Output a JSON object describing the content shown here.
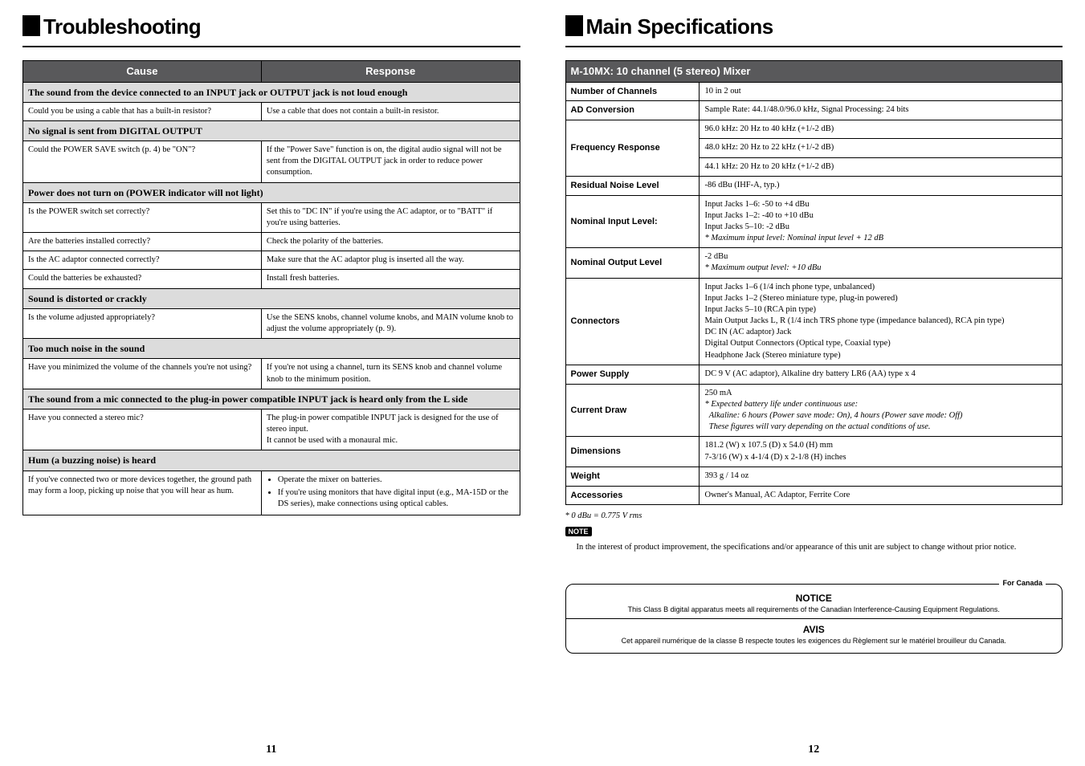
{
  "left": {
    "title": "Troubleshooting",
    "headers": {
      "cause": "Cause",
      "response": "Response"
    },
    "sections": [
      {
        "header": "The sound from the device connected to an INPUT jack or OUTPUT jack is not loud enough",
        "rows": [
          {
            "c": "Could you be using a cable that has a built-in resistor?",
            "r": "Use a cable that does not contain a built-in resistor."
          }
        ]
      },
      {
        "header": "No signal is sent from DIGITAL OUTPUT",
        "rows": [
          {
            "c": "Could the POWER SAVE switch (p. 4) be \"ON\"?",
            "r": "If the \"Power Save\" function is on, the digital audio signal will not be sent from the DIGITAL OUTPUT jack in order to reduce power consumption."
          }
        ]
      },
      {
        "header": "Power does not turn on (POWER indicator will not light)",
        "rows": [
          {
            "c": "Is the POWER switch set correctly?",
            "r": "Set this to \"DC IN\" if you're using the AC adaptor, or to \"BATT\" if you're using batteries."
          },
          {
            "c": "Are the batteries installed correctly?",
            "r": "Check the polarity of the batteries."
          },
          {
            "c": "Is the AC adaptor connected correctly?",
            "r": "Make sure that the AC adaptor plug is inserted all the way."
          },
          {
            "c": "Could the batteries be exhausted?",
            "r": "Install fresh batteries."
          }
        ]
      },
      {
        "header": "Sound is distorted or crackly",
        "rows": [
          {
            "c": "Is the volume adjusted appropriately?",
            "r": "Use the SENS knobs, channel volume knobs, and MAIN volume knob to adjust the volume appropriately (p. 9)."
          }
        ]
      },
      {
        "header": "Too much noise in the sound",
        "rows": [
          {
            "c": "Have you minimized the volume of the channels you're not using?",
            "r": "If you're not using a channel, turn its SENS knob and channel volume knob to the minimum position."
          }
        ]
      },
      {
        "header": "The sound from a mic connected to the plug-in power compatible INPUT jack is heard only from the L side",
        "rows": [
          {
            "c": "Have you connected a stereo mic?",
            "r": "The plug-in power compatible INPUT jack is designed for the use of stereo input.\nIt cannot be used with a monaural mic."
          }
        ]
      },
      {
        "header": "Hum (a buzzing noise) is heard",
        "rows": [
          {
            "c": "If you've connected two or more devices together, the ground path may form a loop, picking up noise that you will hear as hum.",
            "r_bullets": [
              "Operate the mixer on batteries.",
              "If you're using monitors that have digital input (e.g., MA-15D or the DS series), make connections using optical cables."
            ]
          }
        ]
      }
    ],
    "page_num": "11"
  },
  "right": {
    "title": "Main Specifications",
    "top_header": "M-10MX: 10 channel (5 stereo) Mixer",
    "rows": [
      {
        "label": "Number of Channels",
        "cells": [
          "10 in 2 out"
        ]
      },
      {
        "label": "AD Conversion",
        "cells": [
          "Sample Rate: 44.1/48.0/96.0 kHz, Signal Processing: 24 bits"
        ]
      },
      {
        "label": "Frequency Response",
        "cells": [
          "96.0 kHz: 20 Hz to 40 kHz (+1/-2 dB)",
          "48.0 kHz: 20 Hz to 22 kHz (+1/-2 dB)",
          "44.1 kHz: 20 Hz to 20 kHz (+1/-2 dB)"
        ]
      },
      {
        "label": "Residual Noise Level",
        "cells": [
          "-86 dBu (IHF-A, typ.)"
        ]
      },
      {
        "label": "Nominal Input Level:",
        "cells_html": "Input Jacks 1–6: -50 to +4 dBu<br>Input Jacks 1–2: -40 to +10 dBu<br>Input Jacks 5–10: -2 dBu<br><span class=\"italic\">* Maximum input level: Nominal input level + 12 dB</span>"
      },
      {
        "label": "Nominal Output Level",
        "cells_html": "-2 dBu<br><span class=\"italic\">* Maximum output level: +10 dBu</span>"
      },
      {
        "label": "Connectors",
        "cells_html": "Input Jacks 1–6 (1/4 inch phone type, unbalanced)<br>Input Jacks 1–2 (Stereo miniature type, plug-in powered)<br>Input Jacks 5–10 (RCA pin type)<br>Main Output Jacks L, R (1/4 inch TRS phone type (impedance balanced), RCA pin type)<br>DC IN (AC adaptor) Jack<br>Digital Output Connectors (Optical type, Coaxial type)<br>Headphone Jack (Stereo miniature type)"
      },
      {
        "label": "Power Supply",
        "cells": [
          "DC 9 V (AC adaptor), Alkaline dry battery LR6 (AA) type x 4"
        ]
      },
      {
        "label": "Current Draw",
        "cells_html": "250 mA<br><span class=\"italic\">* Expected battery life under continuous use:</span><br><span class=\"italic\">&nbsp;&nbsp;Alkaline: 6 hours (Power save mode: On), 4 hours (Power save mode: Off)</span><br><span class=\"italic\">&nbsp;&nbsp;These figures will vary depending on the actual conditions of use.</span>"
      },
      {
        "label": "Dimensions",
        "cells_html": "181.2 (W) x 107.5 (D) x 54.0 (H) mm<br>7-3/16 (W) x 4-1/4 (D) x 2-1/8 (H) inches"
      },
      {
        "label": "Weight",
        "cells": [
          "393 g / 14 oz"
        ]
      },
      {
        "label": "Accessories",
        "cells": [
          "Owner's Manual, AC Adaptor, Ferrite Core"
        ]
      }
    ],
    "footnote": "* 0 dBu = 0.775 V rms",
    "note_label": "NOTE",
    "note_text": "In the interest of product improvement, the specifications and/or appearance of this unit are subject to change without prior notice.",
    "canada": {
      "tag": "For Canada",
      "notice_title": "NOTICE",
      "notice_body": "This Class B digital apparatus meets all requirements of the Canadian Interference-Causing Equipment Regulations.",
      "avis_title": "AVIS",
      "avis_body": "Cet appareil numérique de la classe B respecte toutes les exigences du Règlement sur le matériel brouilleur du  Canada."
    },
    "page_num": "12"
  }
}
